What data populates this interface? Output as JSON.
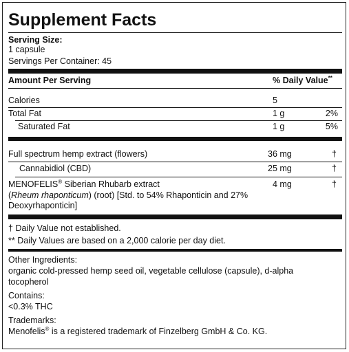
{
  "title": "Supplement Facts",
  "serving": {
    "label": "Serving Size:",
    "size": "1 capsule",
    "per_container": "Servings Per Container: 45"
  },
  "header": {
    "amount": "Amount Per Serving",
    "daily_value": "% Daily Value",
    "daily_value_mark": "**"
  },
  "nutrients": [
    {
      "name": "Calories",
      "amount": "5"
    },
    {
      "name": "Total Fat",
      "amount": "1 g",
      "daily_value": "2%"
    },
    {
      "name": "Saturated Fat",
      "amount": "1 g",
      "daily_value": "5%"
    }
  ],
  "ingredients": [
    {
      "name": "Full spectrum hemp extract (flowers)",
      "amount": "36 mg",
      "daily_value": "†"
    },
    {
      "name": "Cannabidiol (CBD)",
      "amount": "25 mg",
      "daily_value": "†"
    },
    {
      "name": "MENOFELIS",
      "mark": "®",
      "name_rest": " Siberian Rhubarb extract",
      "detail_open": "(",
      "detail_italic": "Rheum rhaponticum",
      "detail_rest": ") (root) [Std. to 54% Rhaponticin and 27%",
      "detail_line3": "Deoxyrhaponticin]",
      "amount": "4 mg",
      "daily_value": "†"
    }
  ],
  "footnotes": [
    "† Daily Value not established.",
    "** Daily Values are based on a 2,000 calorie per day diet."
  ],
  "other_ingredients": {
    "label": "Other Ingredients:",
    "line1": "organic cold-pressed hemp seed oil, vegetable cellulose (capsule), d-alpha",
    "line2": "tocopherol"
  },
  "contains": {
    "label": "Contains:",
    "text": "<0.3% THC"
  },
  "trademarks": {
    "label": "Trademarks:",
    "text_start": "Menofelis",
    "mark": "®",
    "text_end": " is a registered trademark of Finzelberg GmbH & Co. KG."
  }
}
